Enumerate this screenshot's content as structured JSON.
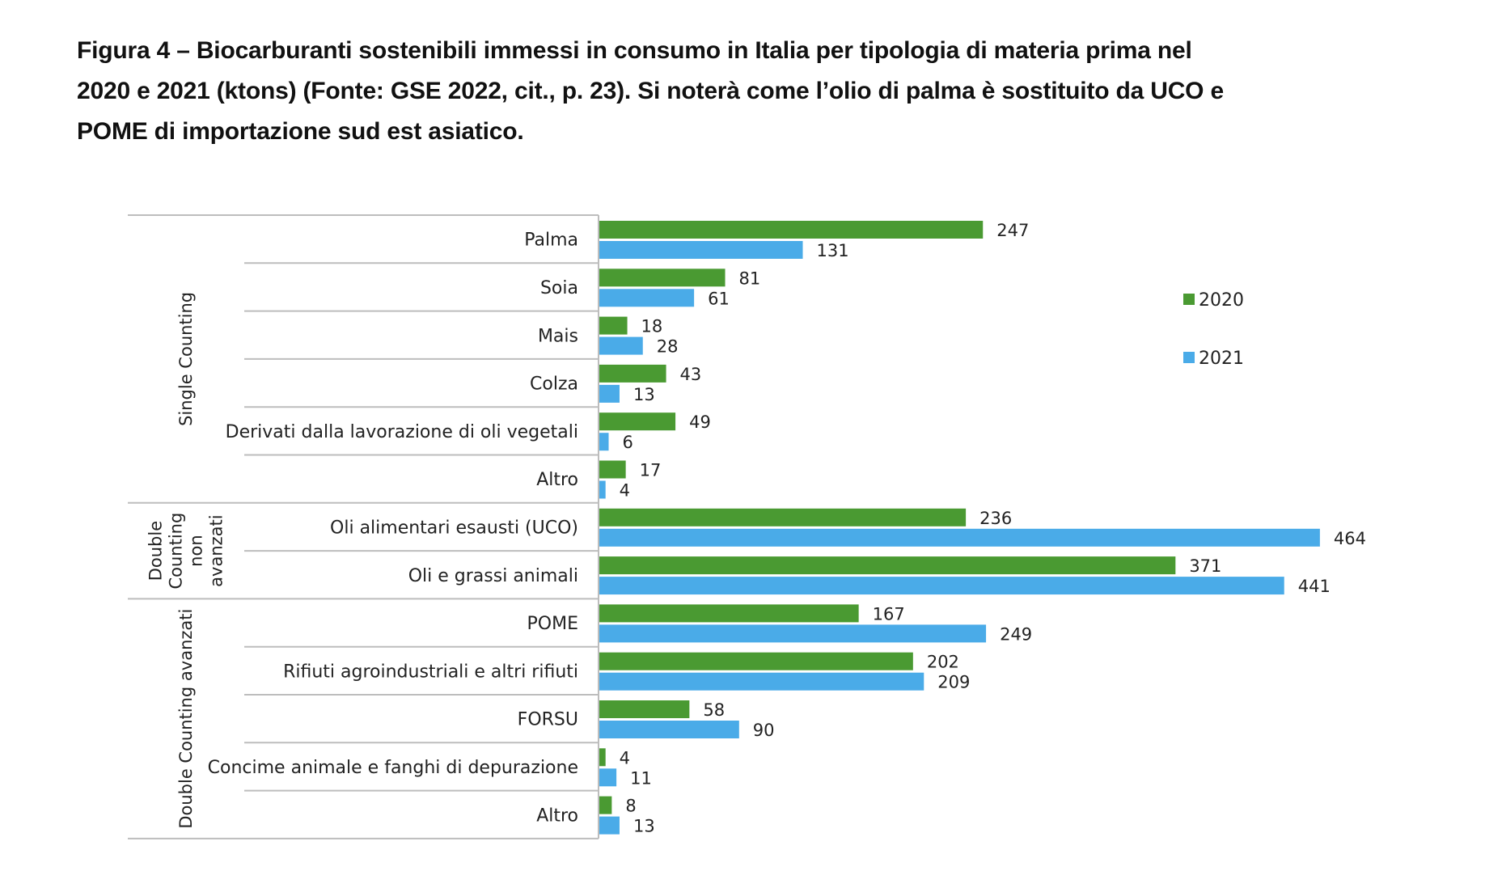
{
  "caption": {
    "line1": "Figura 4 – Biocarburanti sostenibili immessi in consumo in Italia per tipologia di materia prima nel",
    "line2": "2020 e 2021 (ktons) (Fonte: GSE 2022, cit., p. 23). Si noterà come l’olio di palma è sostituito da UCO e",
    "line3": "POME di importazione sud est asiatico."
  },
  "chart_data": {
    "type": "bar",
    "orientation": "horizontal",
    "title": "Biocarburanti sostenibili immessi in consumo in Italia per tipologia di materia prima nel 2020 e 2021 (ktons)",
    "xlabel": "",
    "ylabel": "",
    "grid": false,
    "legend_position": "right",
    "colors": {
      "2020": "#4a9a32",
      "2021": "#4aabe8"
    },
    "groups": [
      {
        "name": "Single Counting",
        "categories": [
          "Palma",
          "Soia",
          "Mais",
          "Colza",
          "Derivati dalla lavorazione di oli vegetali",
          "Altro"
        ]
      },
      {
        "name": "Double Counting non avanzati",
        "label_lines": [
          "Double",
          "Counting",
          "non",
          "avanzati"
        ],
        "categories": [
          "Oli alimentari esausti (UCO)",
          "Oli e grassi animali"
        ]
      },
      {
        "name": "Double Counting avanzati",
        "categories": [
          "POME",
          "Rifiuti agroindustriali e altri rifiuti",
          "FORSU",
          "Concime animale e fanghi di depurazione",
          "Altro"
        ]
      }
    ],
    "categories": [
      "Palma",
      "Soia",
      "Mais",
      "Colza",
      "Derivati dalla lavorazione di oli vegetali",
      "Altro",
      "Oli alimentari esausti (UCO)",
      "Oli e grassi animali",
      "POME",
      "Rifiuti agroindustriali e altri rifiuti",
      "FORSU",
      "Concime animale e fanghi di depurazione",
      "Altro"
    ],
    "series": [
      {
        "name": "2020",
        "values": [
          247,
          81,
          18,
          43,
          49,
          17,
          236,
          371,
          167,
          202,
          58,
          4,
          8
        ]
      },
      {
        "name": "2021",
        "values": [
          131,
          61,
          28,
          13,
          6,
          4,
          464,
          441,
          249,
          209,
          90,
          11,
          13
        ]
      }
    ],
    "xlim": [
      0,
      480
    ]
  }
}
